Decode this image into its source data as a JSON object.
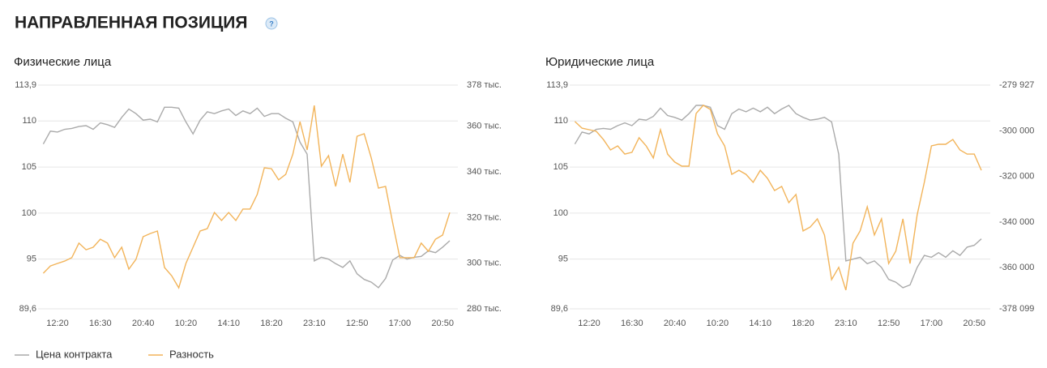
{
  "page_title": "НАПРАВЛЕННАЯ ПОЗИЦИЯ",
  "help_icon": "?",
  "chart_data": [
    {
      "type": "line",
      "title": "Физические лица",
      "categories": [
        null,
        null,
        "12:20",
        null,
        null,
        null,
        null,
        null,
        "16:30",
        null,
        null,
        null,
        null,
        null,
        "20:40",
        null,
        null,
        null,
        null,
        null,
        "10:20",
        null,
        null,
        null,
        null,
        null,
        "14:10",
        null,
        null,
        null,
        null,
        null,
        "18:20",
        null,
        null,
        null,
        null,
        null,
        "23:10",
        null,
        null,
        null,
        null,
        null,
        "12:50",
        null,
        null,
        null,
        null,
        null,
        "17:00",
        null,
        null,
        null,
        null,
        null,
        "20:50",
        null
      ],
      "ylim": [
        89.6,
        113.9
      ],
      "yticks": [
        {
          "value": 89.6,
          "label": "89,6"
        },
        95,
        100,
        105,
        110,
        {
          "value": 113.9,
          "label": "113,9"
        }
      ],
      "y2lim": [
        280000,
        378000
      ],
      "y2ticks": [
        {
          "value": 280000,
          "label": "280 тыс."
        },
        {
          "value": 300000,
          "label": "300 тыс."
        },
        {
          "value": 320000,
          "label": "320 тыс."
        },
        {
          "value": 340000,
          "label": "340 тыс."
        },
        {
          "value": 360000,
          "label": "360 тыс."
        },
        {
          "value": 378000,
          "label": "378 тыс."
        }
      ],
      "grid": true,
      "series": [
        {
          "name": "Цена контракта",
          "color": "#aaaaaa",
          "values": [
            107.5,
            108.9,
            108.8,
            109.1,
            109.2,
            109.4,
            109.5,
            109.1,
            109.8,
            109.6,
            109.3,
            110.4,
            111.3,
            110.8,
            110.1,
            110.2,
            109.9,
            111.5,
            111.5,
            111.4,
            109.9,
            108.6,
            110.1,
            111.0,
            110.8,
            111.1,
            111.3,
            110.6,
            111.1,
            110.8,
            111.4,
            110.5,
            110.8,
            110.8,
            110.3,
            109.9,
            107.7,
            106.4,
            94.8,
            95.2,
            95.0,
            94.5,
            94.1,
            94.8,
            93.4,
            92.8,
            92.5,
            91.9,
            92.9,
            94.9,
            95.4,
            95.0,
            95.2,
            95.3,
            95.9,
            95.7,
            96.3,
            97.0
          ]
        },
        {
          "name": "Разность",
          "color": "#f2b45a",
          "axis": "y2",
          "values": [
            295600,
            298800,
            299900,
            300900,
            302400,
            308800,
            305900,
            307000,
            310500,
            308800,
            302400,
            307000,
            297400,
            301700,
            311600,
            313000,
            314100,
            298100,
            294500,
            289200,
            299900,
            307000,
            314100,
            315100,
            322200,
            318700,
            322200,
            318700,
            323700,
            323700,
            330100,
            341800,
            341400,
            336500,
            338900,
            347800,
            362000,
            349600,
            369100,
            342500,
            347100,
            333600,
            347800,
            335400,
            355600,
            356700,
            346000,
            332900,
            333600,
            317600,
            302400,
            302400,
            302400,
            308800,
            305200,
            310500,
            312300,
            322200
          ]
        }
      ]
    },
    {
      "type": "line",
      "title": "Юридические лица",
      "categories": [
        null,
        null,
        "12:20",
        null,
        null,
        null,
        null,
        null,
        "16:30",
        null,
        null,
        null,
        null,
        null,
        "20:40",
        null,
        null,
        null,
        null,
        null,
        "10:20",
        null,
        null,
        null,
        null,
        null,
        "14:10",
        null,
        null,
        null,
        null,
        null,
        "18:20",
        null,
        null,
        null,
        null,
        null,
        "23:10",
        null,
        null,
        null,
        null,
        null,
        "12:50",
        null,
        null,
        null,
        null,
        null,
        "17:00",
        null,
        null,
        null,
        null,
        null,
        "20:50",
        null
      ],
      "ylim": [
        89.6,
        113.9
      ],
      "yticks": [
        {
          "value": 89.6,
          "label": "89,6"
        },
        95,
        100,
        105,
        110,
        {
          "value": 113.9,
          "label": "113,9"
        }
      ],
      "y2lim": [
        -378099,
        -279927
      ],
      "y2ticks": [
        {
          "value": -378099,
          "label": "-378 099"
        },
        {
          "value": -360000,
          "label": "-360 000"
        },
        {
          "value": -340000,
          "label": "-340 000"
        },
        {
          "value": -320000,
          "label": "-320 000"
        },
        {
          "value": -300000,
          "label": "-300 000"
        },
        {
          "value": -279927,
          "label": "-279 927"
        }
      ],
      "grid": true,
      "series": [
        {
          "color": "#aaaaaa",
          "values": [
            107.5,
            108.8,
            108.6,
            109.1,
            109.2,
            109.1,
            109.5,
            109.8,
            109.5,
            110.2,
            110.1,
            110.5,
            111.4,
            110.6,
            110.4,
            110.1,
            110.8,
            111.7,
            111.7,
            111.5,
            109.5,
            109.1,
            110.8,
            111.3,
            111.0,
            111.4,
            111.0,
            111.5,
            110.8,
            111.3,
            111.7,
            110.8,
            110.4,
            110.1,
            110.2,
            110.4,
            109.9,
            106.4,
            94.8,
            95.0,
            95.2,
            94.5,
            94.8,
            94.1,
            92.8,
            92.5,
            91.9,
            92.2,
            94.1,
            95.4,
            95.2,
            95.7,
            95.2,
            95.9,
            95.4,
            96.3,
            96.5,
            97.2
          ]
        },
        {
          "color": "#f2b45a",
          "axis": "y2",
          "values": [
            -295900,
            -298800,
            -299500,
            -300200,
            -303800,
            -308400,
            -306600,
            -310200,
            -309400,
            -303000,
            -306600,
            -311900,
            -299500,
            -310200,
            -313700,
            -315500,
            -315500,
            -292400,
            -288800,
            -290600,
            -301300,
            -306600,
            -319100,
            -317300,
            -319100,
            -322600,
            -317300,
            -320800,
            -326200,
            -324400,
            -331500,
            -327900,
            -343900,
            -342200,
            -338600,
            -345700,
            -365300,
            -359900,
            -369900,
            -349300,
            -343900,
            -333300,
            -345700,
            -338600,
            -358200,
            -352800,
            -338600,
            -358200,
            -336800,
            -322600,
            -306600,
            -305900,
            -305900,
            -303800,
            -308400,
            -310200,
            -310200,
            -317300
          ]
        }
      ]
    }
  ]
}
